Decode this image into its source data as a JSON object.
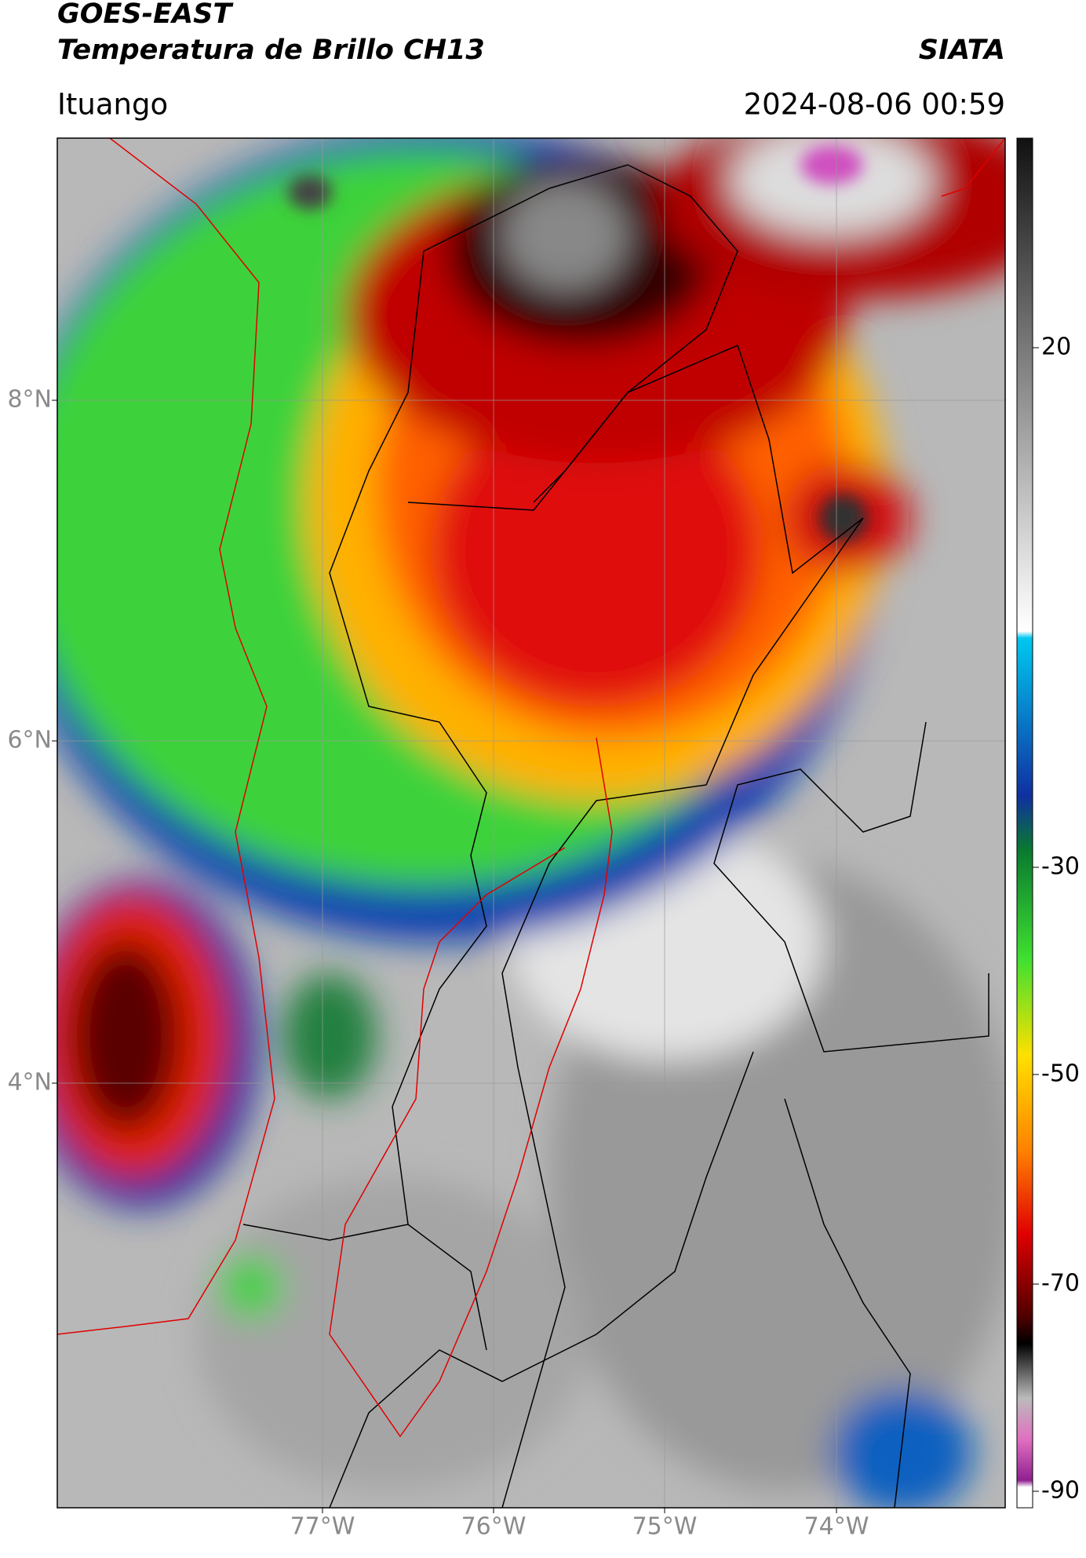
{
  "header": {
    "satellite": "GOES-EAST",
    "product": "Temperatura de Brillo CH13",
    "source": "SIATA",
    "location": "Ituango",
    "datetime": "2024-08-06 00:59"
  },
  "map": {
    "lat_labels": [
      "8°N",
      "6°N",
      "4°N"
    ],
    "lon_labels": [
      "77°W",
      "76°W",
      "75°W",
      "74°W"
    ]
  },
  "colorbar": {
    "ticks": [
      20,
      -30,
      -50,
      -70,
      -90
    ]
  }
}
